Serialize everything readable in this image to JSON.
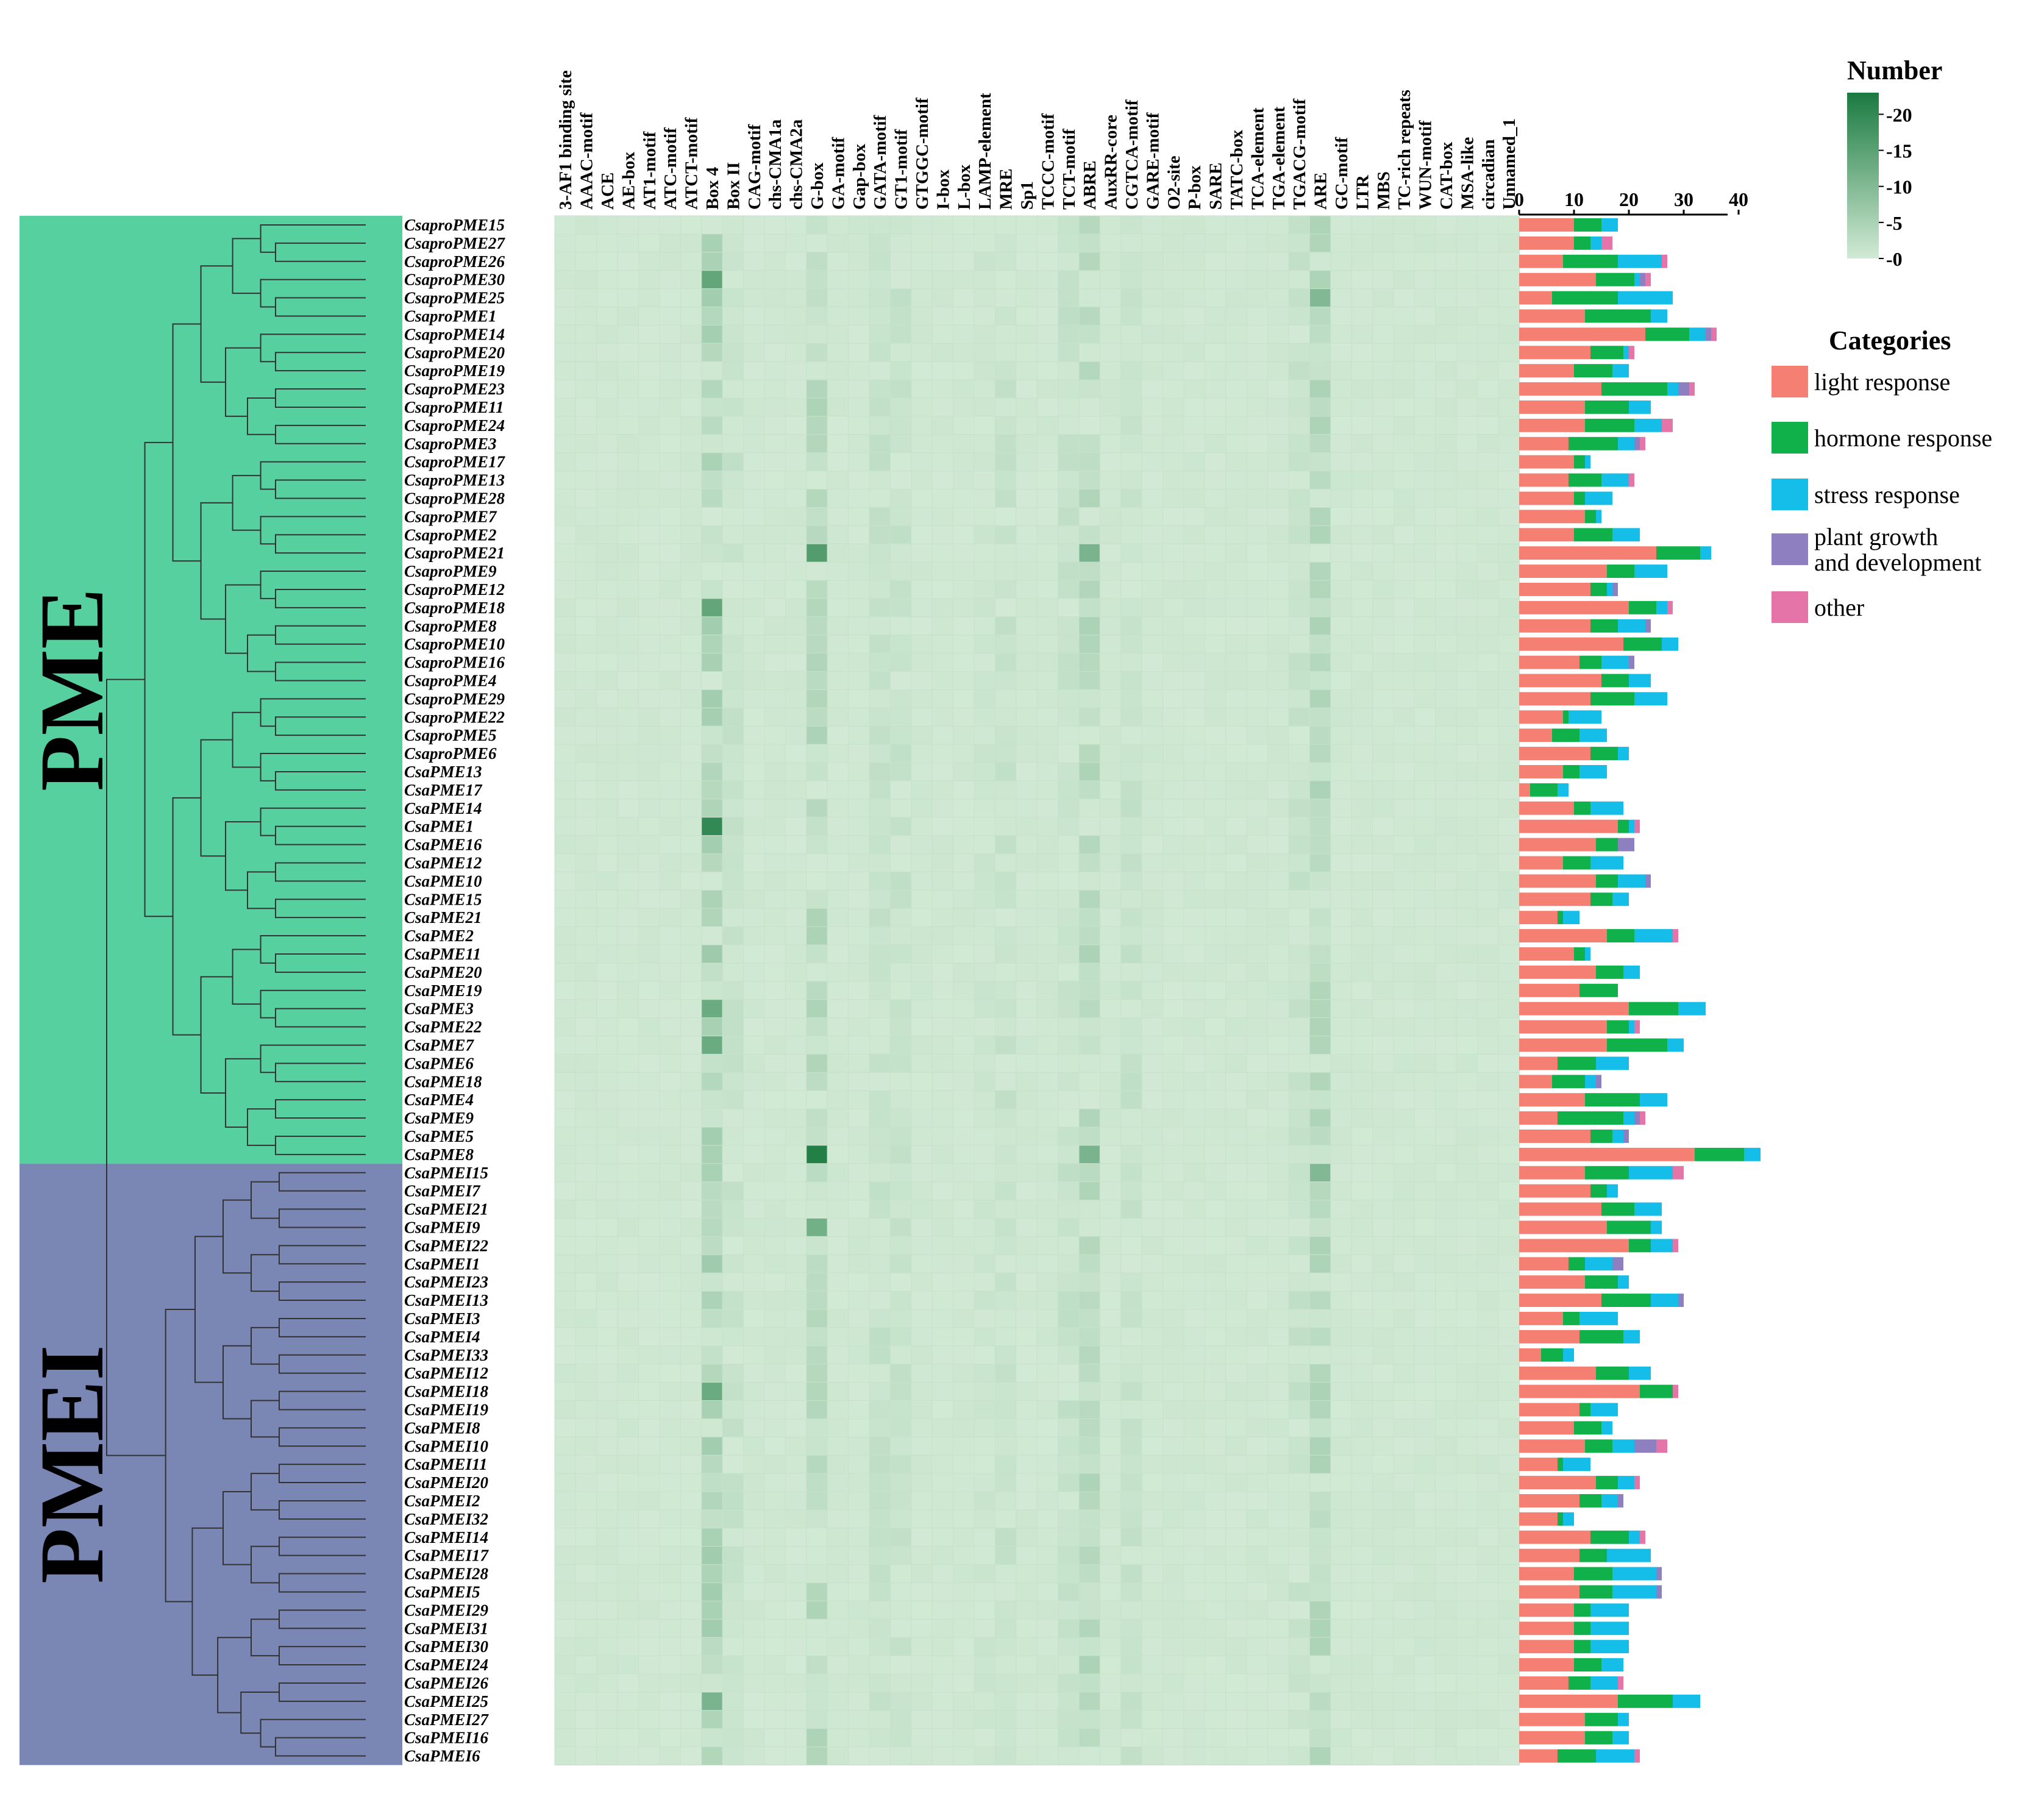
{
  "figure": {
    "group_labels": [
      "PME",
      "PMEI"
    ],
    "group_colors": [
      "#57D0A0",
      "#7A86B4"
    ]
  },
  "chart_data": [
    {
      "type": "heatmap",
      "rows": [
        "CsaproPME15",
        "CsaproPME27",
        "CsaproPME26",
        "CsaproPME30",
        "CsaproPME25",
        "CsaproPME1",
        "CsaproPME14",
        "CsaproPME20",
        "CsaproPME19",
        "CsaproPME23",
        "CsaproPME11",
        "CsaproPME24",
        "CsaproPME3",
        "CsaproPME17",
        "CsaproPME13",
        "CsaproPME28",
        "CsaproPME7",
        "CsaproPME2",
        "CsaproPME21",
        "CsaproPME9",
        "CsaproPME12",
        "CsaproPME18",
        "CsaproPME8",
        "CsaproPME10",
        "CsaproPME16",
        "CsaproPME4",
        "CsaproPME29",
        "CsaproPME22",
        "CsaproPME5",
        "CsaproPME6",
        "CsaPME13",
        "CsaPME17",
        "CsaPME14",
        "CsaPME1",
        "CsaPME16",
        "CsaPME12",
        "CsaPME10",
        "CsaPME15",
        "CsaPME21",
        "CsaPME2",
        "CsaPME11",
        "CsaPME20",
        "CsaPME19",
        "CsaPME3",
        "CsaPME22",
        "CsaPME7",
        "CsaPME6",
        "CsaPME18",
        "CsaPME4",
        "CsaPME9",
        "CsaPME5",
        "CsaPME8",
        "CsaPMEI15",
        "CsaPMEI7",
        "CsaPMEI21",
        "CsaPMEI9",
        "CsaPMEI22",
        "CsaPMEI1",
        "CsaPMEI23",
        "CsaPMEI13",
        "CsaPMEI3",
        "CsaPMEI4",
        "CsaPMEI33",
        "CsaPMEI12",
        "CsaPMEI18",
        "CsaPMEI19",
        "CsaPMEI8",
        "CsaPMEI10",
        "CsaPMEI11",
        "CsaPMEI20",
        "CsaPMEI2",
        "CsaPMEI32",
        "CsaPMEI14",
        "CsaPMEI17",
        "CsaPMEI28",
        "CsaPMEI5",
        "CsaPMEI29",
        "CsaPMEI31",
        "CsaPMEI30",
        "CsaPMEI24",
        "CsaPMEI26",
        "CsaPMEI25",
        "CsaPMEI27",
        "CsaPMEI16",
        "CsaPMEI6"
      ],
      "columns": [
        "3-AF1 binding site",
        "AAAC-motif",
        "ACE",
        "AE-box",
        "AT1-motif",
        "ATC-motif",
        "ATCT-motif",
        "Box 4",
        "Box II",
        "CAG-motif",
        "chs-CMA1a",
        "chs-CMA2a",
        "G-box",
        "GA-motif",
        "Gap-box",
        "GATA-motif",
        "GT1-motif",
        "GTGGC-motif",
        "I-box",
        "L-box",
        "LAMP-element",
        "MRE",
        "Sp1",
        "TCCC-motif",
        "TCT-motif",
        "ABRE",
        "AuxRR-core",
        "CGTCA-motif",
        "GARE-motif",
        "O2-site",
        "P-box",
        "SARE",
        "TATC-box",
        "TCA-element",
        "TGA-element",
        "TGACG-motif",
        "ARE",
        "GC-motif",
        "LTR",
        "MBS",
        "TC-rich repeats",
        "WUN-motif",
        "CAT-box",
        "MSA-like",
        "circadian",
        "Unnamed_1"
      ],
      "colorbar": {
        "title": "Number",
        "ticks": [
          0,
          5,
          10,
          15,
          20
        ],
        "range": [
          0,
          23
        ],
        "colors": [
          "#d2ead5",
          "#1a7a40"
        ]
      },
      "strong_cells": [
        {
          "row": "CsaPME8",
          "column": "G-box",
          "value": 22
        },
        {
          "row": "CsaPME1",
          "column": "Box 4",
          "value": 20
        },
        {
          "row": "CsaproPME21",
          "column": "G-box",
          "value": 16
        },
        {
          "row": "CsaproPME30",
          "column": "Box 4",
          "value": 14
        },
        {
          "row": "CsaproPME18",
          "column": "Box 4",
          "value": 14
        },
        {
          "row": "CsaPME3",
          "column": "Box 4",
          "value": 13
        },
        {
          "row": "CsaPME7",
          "column": "Box 4",
          "value": 13
        },
        {
          "row": "CsaPMEI18",
          "column": "Box 4",
          "value": 13
        },
        {
          "row": "CsaPMEI9",
          "column": "G-box",
          "value": 12
        },
        {
          "row": "CsaproPME21",
          "column": "ABRE",
          "value": 11
        },
        {
          "row": "CsaPME8",
          "column": "ABRE",
          "value": 11
        },
        {
          "row": "CsaproPME25",
          "column": "ARE",
          "value": 10
        },
        {
          "row": "CsaPMEI15",
          "column": "ARE",
          "value": 10
        },
        {
          "row": "CsaPMEI25",
          "column": "Box 4",
          "value": 11
        }
      ]
    },
    {
      "type": "bar",
      "stacked": true,
      "orientation": "horizontal",
      "xlim": [
        0,
        40
      ],
      "xticks": [
        0,
        10,
        20,
        30,
        40
      ],
      "legend_title": "Categories",
      "series": [
        {
          "name": "light response",
          "color": "#F47F72",
          "values": [
            10,
            10,
            8,
            14,
            6,
            12,
            23,
            13,
            10,
            15,
            12,
            12,
            9,
            10,
            9,
            10,
            12,
            10,
            25,
            16,
            13,
            20,
            13,
            19,
            11,
            15,
            13,
            8,
            6,
            13,
            8,
            2,
            10,
            18,
            14,
            8,
            14,
            13,
            7,
            16,
            10,
            14,
            11,
            20,
            16,
            16,
            7,
            6,
            12,
            7,
            13,
            32,
            12,
            13,
            15,
            16,
            20,
            9,
            12,
            15,
            8,
            11,
            4,
            14,
            22,
            11,
            10,
            12,
            7,
            14,
            11,
            7,
            13,
            11,
            10,
            11,
            10,
            10,
            10,
            10,
            9,
            18,
            12,
            12,
            7
          ]
        },
        {
          "name": "hormone response",
          "color": "#10B14A",
          "values": [
            5,
            3,
            10,
            7,
            12,
            12,
            8,
            6,
            7,
            12,
            8,
            9,
            9,
            2,
            6,
            2,
            2,
            7,
            8,
            5,
            3,
            5,
            5,
            7,
            4,
            5,
            8,
            1,
            5,
            5,
            3,
            5,
            3,
            2,
            4,
            5,
            4,
            4,
            1,
            5,
            2,
            5,
            7,
            9,
            4,
            11,
            7,
            6,
            10,
            12,
            4,
            9,
            8,
            3,
            6,
            8,
            4,
            3,
            6,
            9,
            3,
            8,
            4,
            6,
            6,
            2,
            5,
            5,
            1,
            4,
            4,
            1,
            7,
            5,
            7,
            6,
            3,
            3,
            3,
            5,
            4,
            10,
            6,
            5,
            7
          ]
        },
        {
          "name": "stress response",
          "color": "#14BEE8",
          "values": [
            3,
            2,
            8,
            1,
            10,
            3,
            3,
            1,
            3,
            2,
            4,
            5,
            3,
            1,
            5,
            5,
            1,
            5,
            2,
            6,
            1,
            2,
            5,
            3,
            5,
            4,
            6,
            6,
            5,
            2,
            5,
            2,
            6,
            1,
            0,
            6,
            5,
            3,
            3,
            7,
            1,
            3,
            0,
            5,
            1,
            3,
            6,
            2,
            5,
            2,
            2,
            3,
            8,
            2,
            5,
            2,
            4,
            5,
            2,
            5,
            7,
            3,
            2,
            4,
            0,
            5,
            2,
            4,
            5,
            3,
            3,
            2,
            2,
            8,
            8,
            8,
            7,
            7,
            7,
            4,
            5,
            5,
            2,
            3,
            7
          ]
        },
        {
          "name": "plant growth and development",
          "color": "#8E7FC0",
          "values": [
            0,
            0,
            0,
            1,
            0,
            0,
            1,
            0,
            0,
            2,
            0,
            0,
            1,
            0,
            0,
            0,
            0,
            0,
            0,
            0,
            1,
            0,
            1,
            0,
            1,
            0,
            0,
            0,
            0,
            0,
            0,
            0,
            0,
            0,
            3,
            0,
            1,
            0,
            0,
            0,
            0,
            0,
            0,
            0,
            0,
            0,
            0,
            1,
            0,
            1,
            1,
            0,
            0,
            0,
            0,
            0,
            0,
            2,
            0,
            1,
            0,
            0,
            0,
            0,
            0,
            0,
            0,
            4,
            0,
            0,
            1,
            0,
            0,
            0,
            1,
            1,
            0,
            0,
            0,
            0,
            0,
            0,
            0,
            0,
            0
          ]
        },
        {
          "name": "other",
          "color": "#E574A8",
          "values": [
            0,
            2,
            1,
            1,
            0,
            0,
            1,
            1,
            0,
            1,
            0,
            2,
            1,
            0,
            1,
            0,
            0,
            0,
            0,
            0,
            0,
            1,
            0,
            0,
            0,
            0,
            0,
            0,
            0,
            0,
            0,
            0,
            0,
            1,
            0,
            0,
            0,
            0,
            0,
            1,
            0,
            0,
            0,
            0,
            1,
            0,
            0,
            0,
            0,
            1,
            0,
            0,
            2,
            0,
            0,
            0,
            1,
            0,
            0,
            0,
            0,
            0,
            0,
            0,
            1,
            0,
            0,
            2,
            0,
            1,
            0,
            0,
            1,
            0,
            0,
            0,
            0,
            0,
            0,
            0,
            1,
            0,
            0,
            0,
            1
          ]
        }
      ]
    }
  ]
}
